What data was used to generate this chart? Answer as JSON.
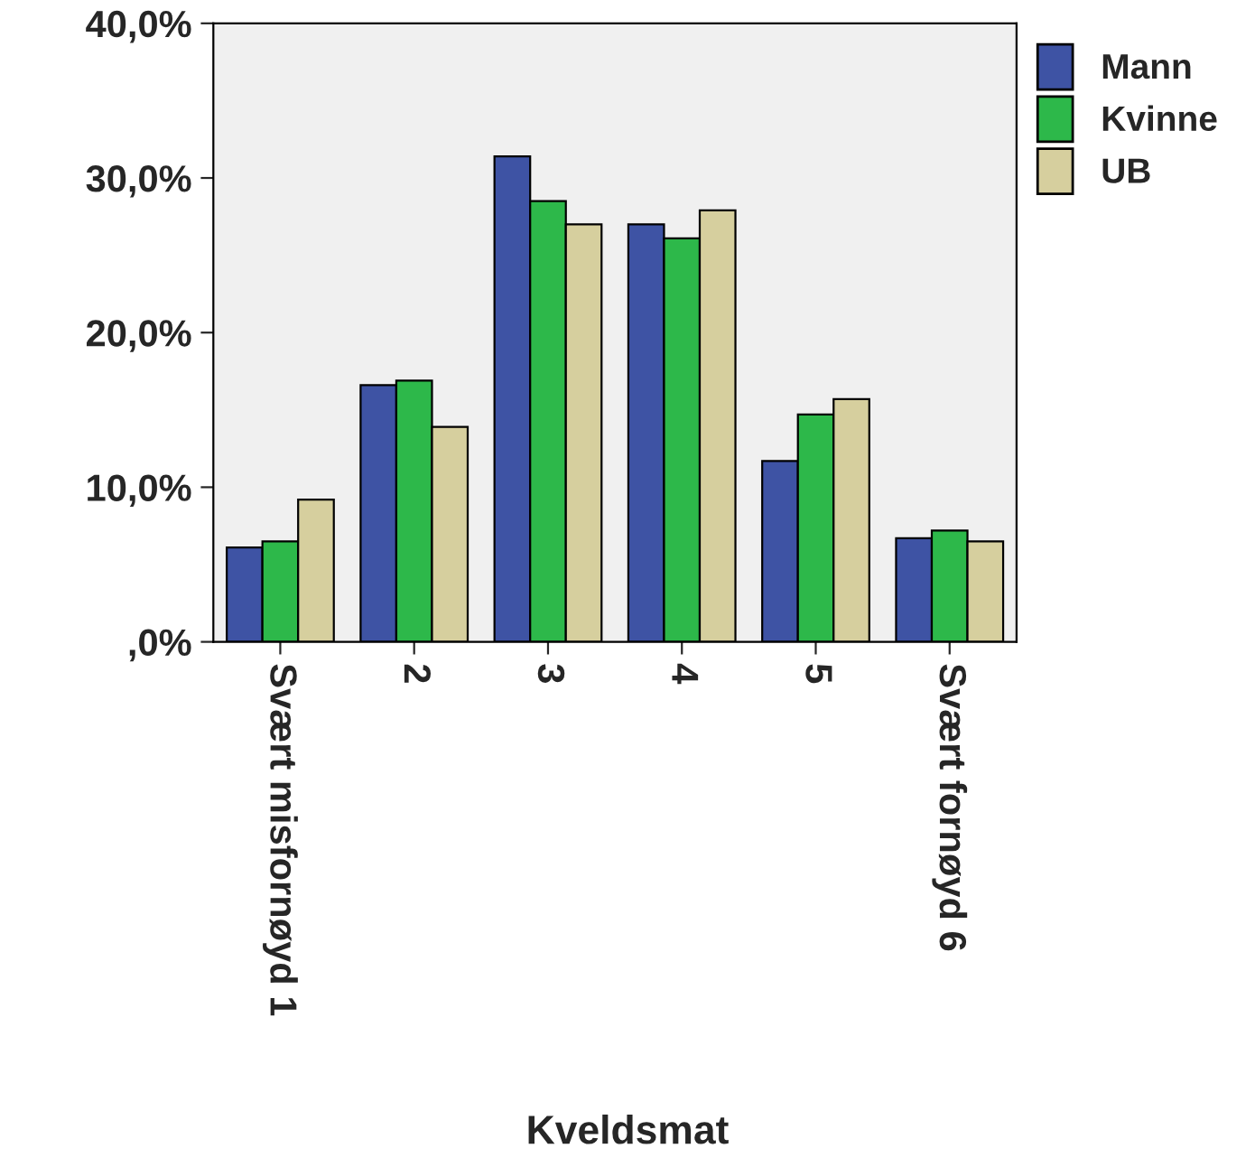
{
  "chart_data": {
    "type": "bar",
    "xlabel": "Kveldsmat",
    "categories": [
      "Svært misfornøyd 1",
      "2",
      "3",
      "4",
      "5",
      "Svært fornøyd 6"
    ],
    "series": [
      {
        "name": "Mann",
        "color": "#3e53a4",
        "values": [
          6.1,
          16.6,
          31.4,
          27.0,
          11.7,
          6.7
        ]
      },
      {
        "name": "Kvinne",
        "color": "#2db84a",
        "values": [
          6.5,
          16.9,
          28.5,
          26.1,
          14.7,
          7.2
        ]
      },
      {
        "name": "UB",
        "color": "#d6cf9e",
        "values": [
          9.2,
          13.9,
          27.0,
          27.9,
          15.7,
          6.5
        ]
      }
    ],
    "ylim": [
      0,
      40
    ],
    "yticks": [
      {
        "value": 0,
        "label": ",0%"
      },
      {
        "value": 10,
        "label": "10,0%"
      },
      {
        "value": 20,
        "label": "20,0%"
      },
      {
        "value": 30,
        "label": "30,0%"
      },
      {
        "value": 40,
        "label": "40,0%"
      }
    ],
    "grid": false,
    "legend": "top right"
  }
}
